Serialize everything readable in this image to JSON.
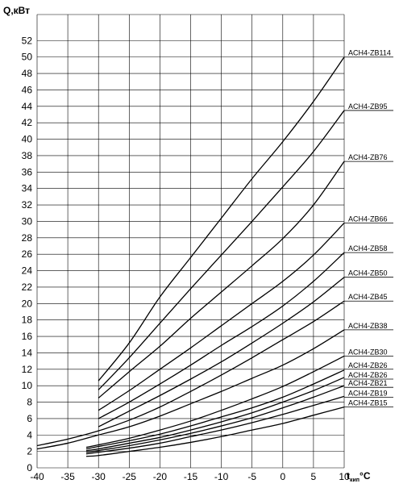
{
  "chart_data": {
    "type": "line",
    "ylabel": "Q,кВт",
    "xlabel": "t",
    "xlabel_subscript": "кип",
    "xlabel_unit": "°C",
    "xlim": [
      -40,
      10
    ],
    "ylim": [
      0,
      54
    ],
    "grid": true,
    "x_ticks": [
      -40,
      -35,
      -30,
      -25,
      -20,
      -15,
      -10,
      -5,
      0,
      5,
      10
    ],
    "y_ticks": [
      0,
      2,
      4,
      6,
      8,
      10,
      12,
      14,
      16,
      18,
      20,
      22,
      24,
      26,
      28,
      30,
      32,
      34,
      36,
      38,
      40,
      42,
      44,
      46,
      48,
      50,
      52
    ],
    "series": [
      {
        "name": "ACH4-ZB114",
        "x": [
          -30,
          -25,
          -20,
          -15,
          -10,
          -5,
          0,
          5,
          10
        ],
        "values": [
          10.6,
          15.2,
          20.8,
          25.6,
          30.4,
          35.2,
          39.7,
          44.6,
          50.0
        ]
      },
      {
        "name": "ACH4-ZB95",
        "x": [
          -30,
          -25,
          -20,
          -15,
          -10,
          -5,
          0,
          5,
          10
        ],
        "values": [
          9.5,
          13.4,
          17.6,
          21.8,
          25.9,
          30.0,
          34.2,
          38.5,
          43.5
        ]
      },
      {
        "name": "ACH4-ZB76",
        "x": [
          -30,
          -25,
          -20,
          -15,
          -10,
          -5,
          0,
          5,
          10
        ],
        "values": [
          8.5,
          11.7,
          14.8,
          18.2,
          21.4,
          24.6,
          27.9,
          32.0,
          37.3
        ]
      },
      {
        "name": "ACH4-ZB66",
        "x": [
          -30,
          -25,
          -20,
          -15,
          -10,
          -5,
          0,
          5,
          10
        ],
        "values": [
          7.0,
          9.4,
          12.0,
          14.6,
          17.3,
          20.0,
          22.7,
          25.9,
          29.8
        ]
      },
      {
        "name": "ACH4-ZB58",
        "x": [
          -30,
          -25,
          -20,
          -15,
          -10,
          -5,
          0,
          5,
          10
        ],
        "values": [
          6.0,
          8.0,
          10.2,
          12.5,
          14.9,
          17.2,
          19.7,
          22.7,
          26.2
        ]
      },
      {
        "name": "ACH4-ZB50",
        "x": [
          -30,
          -25,
          -20,
          -15,
          -10,
          -5,
          0,
          5,
          10
        ],
        "values": [
          5.0,
          6.9,
          8.8,
          10.8,
          12.9,
          15.2,
          17.6,
          20.2,
          23.2
        ]
      },
      {
        "name": "ACH4-ZB45",
        "x": [
          -40,
          -35,
          -30,
          -25,
          -20,
          -15,
          -10,
          -5,
          0,
          5,
          10
        ],
        "values": [
          2.7,
          3.5,
          4.5,
          5.8,
          7.4,
          9.3,
          11.3,
          13.4,
          15.6,
          17.8,
          20.3
        ]
      },
      {
        "name": "ACH4-ZB38",
        "x": [
          -40,
          -35,
          -30,
          -25,
          -20,
          -15,
          -10,
          -5,
          0,
          5,
          10
        ],
        "values": [
          2.3,
          3.0,
          4.0,
          5.0,
          6.3,
          7.8,
          9.3,
          10.9,
          12.5,
          14.5,
          16.8
        ]
      },
      {
        "name": "ACH4-ZB30",
        "x": [
          -32,
          -30,
          -25,
          -20,
          -15,
          -10,
          -5,
          0,
          5,
          10
        ],
        "values": [
          2.5,
          2.8,
          3.6,
          4.6,
          5.7,
          7.0,
          8.4,
          9.9,
          11.7,
          13.6
        ]
      },
      {
        "name": "ACH4-ZB26",
        "x": [
          -32,
          -30,
          -25,
          -20,
          -15,
          -10,
          -5,
          0,
          5,
          10
        ],
        "values": [
          2.3,
          2.6,
          3.3,
          4.1,
          5.1,
          6.2,
          7.3,
          8.6,
          10.2,
          11.9
        ]
      },
      {
        "name": "ACH4-ZB26",
        "x": [
          -32,
          -30,
          -25,
          -20,
          -15,
          -10,
          -5,
          0,
          5,
          10
        ],
        "values": [
          2.1,
          2.3,
          3.0,
          3.7,
          4.6,
          5.6,
          6.7,
          8.0,
          9.4,
          11.0
        ]
      },
      {
        "name": "ACH4-ZB21",
        "x": [
          -32,
          -30,
          -25,
          -20,
          -15,
          -10,
          -5,
          0,
          5,
          10
        ],
        "values": [
          1.9,
          2.1,
          2.7,
          3.4,
          4.2,
          5.1,
          6.1,
          7.3,
          8.6,
          10.0
        ]
      },
      {
        "name": "ACH4-ZB19",
        "x": [
          -32,
          -30,
          -25,
          -20,
          -15,
          -10,
          -5,
          0,
          5,
          10
        ],
        "values": [
          1.7,
          1.9,
          2.4,
          3.0,
          3.8,
          4.6,
          5.5,
          6.5,
          7.6,
          8.7
        ]
      },
      {
        "name": "ACH4-ZB15",
        "x": [
          -32,
          -30,
          -25,
          -20,
          -15,
          -10,
          -5,
          0,
          5,
          10
        ],
        "values": [
          1.4,
          1.5,
          2.0,
          2.5,
          3.1,
          3.8,
          4.6,
          5.4,
          6.4,
          7.4
        ]
      }
    ],
    "series_label_y": [
      50.0,
      43.5,
      37.3,
      29.8,
      26.2,
      23.2,
      20.3,
      16.8,
      13.6,
      12.0,
      10.8,
      9.8,
      8.6,
      7.4
    ]
  }
}
